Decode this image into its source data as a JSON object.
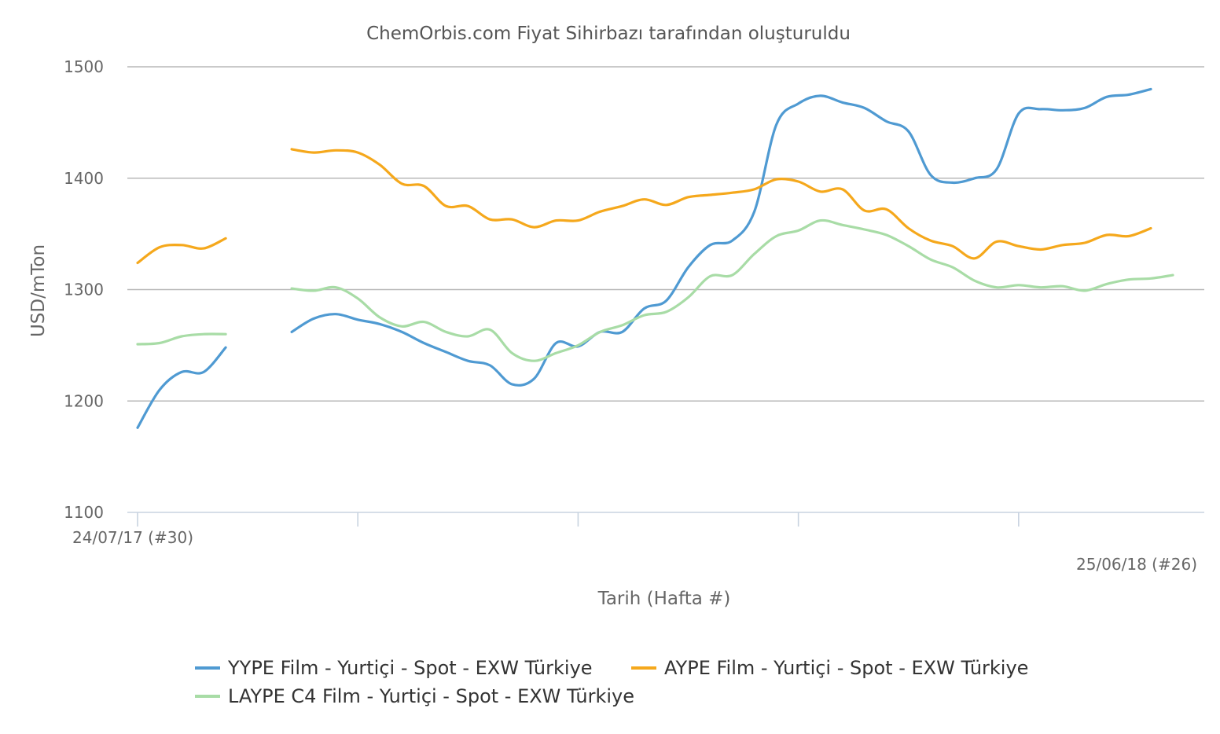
{
  "chart_data": {
    "type": "line",
    "title": "ChemOrbis.com Fiyat Sihirbazı tarafından oluşturuldu",
    "xlabel": "Tarih (Hafta #)",
    "ylabel": "USD/mTon",
    "ylim": [
      1100,
      1500
    ],
    "yticks": [
      1100,
      1200,
      1300,
      1400,
      1500
    ],
    "grid": true,
    "legend_position": "bottom",
    "x_start_label": "24/07/17 (#30)",
    "x_end_label": "25/06/18 (#26)",
    "x": [
      "24/07/17",
      "31/07/17",
      "07/08/17",
      "14/08/17",
      "21/08/17",
      "28/08/17",
      "04/09/17",
      "11/09/17",
      "18/09/17",
      "25/09/17",
      "02/10/17",
      "09/10/17",
      "16/10/17",
      "23/10/17",
      "30/10/17",
      "06/11/17",
      "13/11/17",
      "20/11/17",
      "27/11/17",
      "04/12/17",
      "11/12/17",
      "18/12/17",
      "25/12/17",
      "01/01/18",
      "08/01/18",
      "15/01/18",
      "22/01/18",
      "29/01/18",
      "05/02/18",
      "12/02/18",
      "19/02/18",
      "26/02/18",
      "05/03/18",
      "12/03/18",
      "19/03/18",
      "26/03/18",
      "02/04/18",
      "09/04/18",
      "16/04/18",
      "23/04/18",
      "30/04/18",
      "07/05/18",
      "14/05/18",
      "21/05/18",
      "28/05/18",
      "04/06/18",
      "11/06/18",
      "18/06/18",
      "25/06/18"
    ],
    "series": [
      {
        "name": "YYPE Film - Yurtiçi - Spot - EXW Türkiye",
        "color": "#4f9ad2",
        "values": [
          1176,
          1210,
          1226,
          1226,
          1248,
          null,
          null,
          1262,
          1274,
          1278,
          1273,
          1269,
          1262,
          1252,
          1244,
          1236,
          1232,
          1215,
          1220,
          1252,
          1249,
          1262,
          1262,
          1283,
          1290,
          1320,
          1340,
          1344,
          1370,
          1448,
          1467,
          1474,
          1468,
          1463,
          1451,
          1442,
          1403,
          1396,
          1400,
          1408,
          1458,
          1462,
          1461,
          1463,
          1473,
          1475,
          1480,
          null,
          1474
        ]
      },
      {
        "name": "AYPE Film - Yurtiçi - Spot - EXW Türkiye",
        "color": "#f5a81c",
        "values": [
          1324,
          1338,
          1340,
          1337,
          1346,
          null,
          null,
          1426,
          1423,
          1425,
          1423,
          1412,
          1395,
          1393,
          1375,
          1375,
          1363,
          1363,
          1356,
          1362,
          1362,
          1370,
          1375,
          1381,
          1376,
          1383,
          1385,
          1387,
          1390,
          1399,
          1397,
          1388,
          1390,
          1371,
          1372,
          1355,
          1344,
          1339,
          1328,
          1343,
          1339,
          1336,
          1340,
          1342,
          1349,
          1348,
          1355,
          null,
          1357
        ]
      },
      {
        "name": "LAYPE C4 Film - Yurtiçi - Spot - EXW Türkiye",
        "color": "#a8dca6",
        "values": [
          1251,
          1252,
          1258,
          1260,
          1260,
          null,
          null,
          1301,
          1299,
          1302,
          1292,
          1275,
          1267,
          1271,
          1262,
          1258,
          1264,
          1243,
          1236,
          1243,
          1250,
          1262,
          1268,
          1277,
          1280,
          1293,
          1312,
          1313,
          1332,
          1348,
          1353,
          1362,
          1358,
          1354,
          1349,
          1339,
          1327,
          1320,
          1308,
          1302,
          1304,
          1302,
          1303,
          1299,
          1305,
          1309,
          1310,
          1313,
          null
        ]
      }
    ]
  }
}
